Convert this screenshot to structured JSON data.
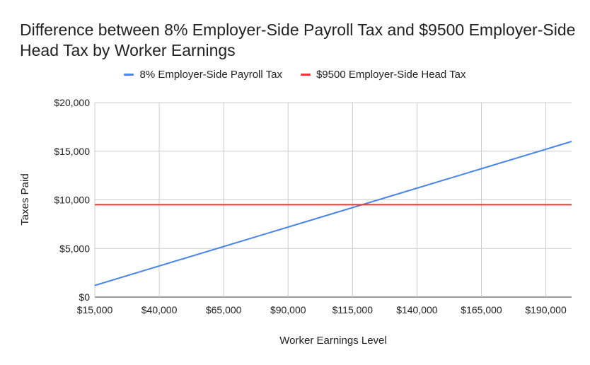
{
  "chart_data": {
    "type": "line",
    "title": "Difference between 8% Employer-Side Payroll Tax and $9500 Employer-Side Head Tax by Worker Earnings",
    "xlabel": "Worker Earnings Level",
    "ylabel": "Taxes Paid",
    "x": [
      15000,
      40000,
      65000,
      90000,
      115000,
      140000,
      165000,
      190000,
      200000
    ],
    "xlim": [
      15000,
      200000
    ],
    "ylim": [
      0,
      20000
    ],
    "x_ticks": [
      15000,
      40000,
      65000,
      90000,
      115000,
      140000,
      165000,
      190000
    ],
    "x_tick_labels": [
      "$15,000",
      "$40,000",
      "$65,000",
      "$90,000",
      "$115,000",
      "$140,000",
      "$165,000",
      "$190,000"
    ],
    "y_ticks": [
      0,
      5000,
      10000,
      15000,
      20000
    ],
    "y_tick_labels": [
      "$0",
      "$5,000",
      "$10,000",
      "$15,000",
      "$20,000"
    ],
    "series": [
      {
        "name": "8% Employer-Side Payroll Tax",
        "color": "#4a86e8",
        "values": [
          1200,
          3200,
          5200,
          7200,
          9200,
          11200,
          13200,
          15200,
          16000
        ]
      },
      {
        "name": "$9500 Employer-Side Head Tax",
        "color": "#e53935",
        "values": [
          9500,
          9500,
          9500,
          9500,
          9500,
          9500,
          9500,
          9500,
          9500
        ]
      }
    ],
    "grid": true,
    "legend_position": "top-center"
  }
}
